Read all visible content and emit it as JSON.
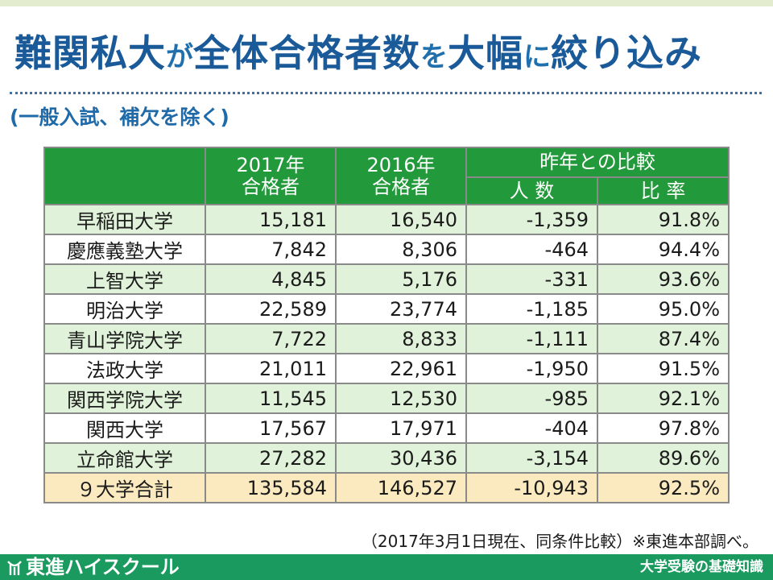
{
  "title": {
    "part1": "難関私大",
    "part2": "が",
    "part3": "全体合格者数",
    "part4": "を",
    "part5": "大幅",
    "part6": "に",
    "part7": "絞り込み"
  },
  "subtitle": "(一般入試、補欠を除く)",
  "table": {
    "headers": {
      "y2017_line1": "2017年",
      "y2017_line2": "合格者",
      "y2016_line1": "2016年",
      "y2016_line2": "合格者",
      "compare": "昨年との比較",
      "diff": "人 数",
      "ratio": "比 率"
    },
    "rows": [
      {
        "name": "早稲田大学",
        "y2017": "15,181",
        "y2016": "16,540",
        "diff": "-1,359",
        "ratio": "91.8%"
      },
      {
        "name": "慶應義塾大学",
        "y2017": "7,842",
        "y2016": "8,306",
        "diff": "-464",
        "ratio": "94.4%"
      },
      {
        "name": "上智大学",
        "y2017": "4,845",
        "y2016": "5,176",
        "diff": "-331",
        "ratio": "93.6%"
      },
      {
        "name": "明治大学",
        "y2017": "22,589",
        "y2016": "23,774",
        "diff": "-1,185",
        "ratio": "95.0%"
      },
      {
        "name": "青山学院大学",
        "y2017": "7,722",
        "y2016": "8,833",
        "diff": "-1,111",
        "ratio": "87.4%"
      },
      {
        "name": "法政大学",
        "y2017": "21,011",
        "y2016": "22,961",
        "diff": "-1,950",
        "ratio": "91.5%"
      },
      {
        "name": "関西学院大学",
        "y2017": "11,545",
        "y2016": "12,530",
        "diff": "-985",
        "ratio": "92.1%"
      },
      {
        "name": "関西大学",
        "y2017": "17,567",
        "y2016": "17,971",
        "diff": "-404",
        "ratio": "97.8%"
      },
      {
        "name": "立命館大学",
        "y2017": "27,282",
        "y2016": "30,436",
        "diff": "-3,154",
        "ratio": "89.6%"
      }
    ],
    "total": {
      "name": "９大学合計",
      "y2017": "135,584",
      "y2016": "146,527",
      "diff": "-10,943",
      "ratio": "92.5%"
    }
  },
  "footnote": "（2017年3月1日現在、同条件比較）※東進本部調べ。",
  "footer": {
    "brand": "東進ハイスクール",
    "series": "大学受験の基礎知識"
  },
  "colors": {
    "title_blue": "#1a5a99",
    "header_green": "#22993a",
    "row_shade": "#e0f2d9",
    "total_row": "#fbe9bf",
    "footer_green": "#1a9a5f"
  }
}
